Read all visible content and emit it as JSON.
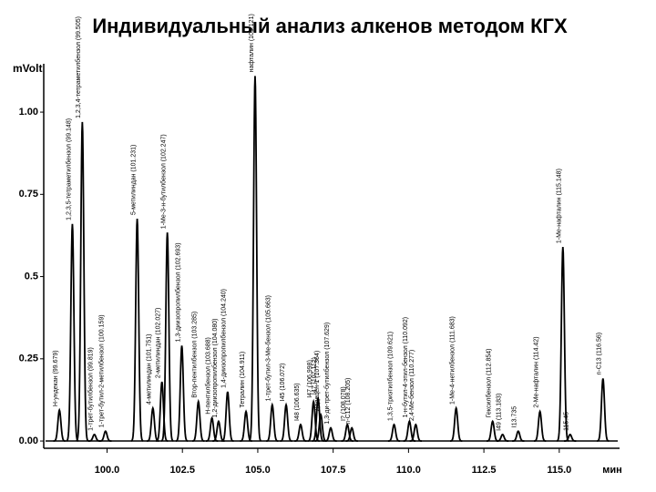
{
  "chart_data": {
    "type": "chromatogram",
    "title": "Индивидуальный анализ алкенов методом КГХ",
    "y_label": "mVolt",
    "x_label": "мин",
    "xlim": [
      97.9,
      117.0
    ],
    "xticks": [
      {
        "value": 100,
        "label": "100.0"
      },
      {
        "value": 102.5,
        "label": "102.5"
      },
      {
        "value": 105,
        "label": "105.0"
      },
      {
        "value": 107.5,
        "label": "107.5"
      },
      {
        "value": 110,
        "label": "110.0"
      },
      {
        "value": 112.5,
        "label": "112.5"
      },
      {
        "value": 115,
        "label": "115.0"
      }
    ],
    "ylim": [
      -0.022,
      1.147
    ],
    "yticks": [
      {
        "value": 0,
        "label": "0.00"
      },
      0.25,
      0.5,
      0.75,
      {
        "value": 1,
        "label": "1.00"
      }
    ],
    "color": "#000000",
    "x": [
      98.42,
      98.85,
      99.18,
      99.58,
      99.95,
      101.0,
      101.52,
      101.82,
      102.0,
      102.48,
      103.03,
      103.48,
      103.7,
      104.0,
      104.61,
      104.91,
      105.48,
      105.94,
      106.42,
      106.85,
      107.0,
      107.09,
      107.42,
      107.97,
      108.12,
      109.52,
      110.03,
      110.24,
      111.58,
      112.79,
      113.12,
      113.64,
      114.36,
      115.12,
      115.36,
      116.45
    ],
    "values": [
      0.094,
      0.66,
      0.97,
      0.02,
      0.03,
      0.676,
      0.1,
      0.18,
      0.634,
      0.29,
      0.12,
      0.07,
      0.06,
      0.15,
      0.09,
      1.11,
      0.11,
      0.11,
      0.05,
      0.12,
      0.13,
      0.08,
      0.04,
      0.05,
      0.04,
      0.05,
      0.06,
      0.05,
      0.1,
      0.06,
      0.02,
      0.03,
      0.09,
      0.59,
      0.02,
      0.19
    ],
    "labels": [
      "Н-ундекан (99.679)",
      "1,2,3,5-тетраметилбензол (99.148)",
      "1,2,3,4-тетраметилбензол (99.505)",
      "1-трет-бутилбензол (99.819)",
      "1-трет-бутил-2-метилбензол (100.159)",
      "5-метилиндан (101.231)",
      "4-метилиндан (101.751)",
      "2-метилиндан (102.027)",
      "1-Ме-3-н-бутилбензол (102.247)",
      "1,3-диизопропилбензол (102.693)",
      "Втор-пентилбензол (103.285)",
      "Н-пентилбензол (103.688)",
      "1,2-диизопропилбензол (104.080)",
      "1,4-диизопропилбензол (104.240)",
      "Тетралин (104.911)",
      "нафталин (105.121)",
      "1-трет-бутил-3-Ме-бензол (105.663)",
      "I45 (106.072)",
      "I48 (106.635)",
      "I47 (106.998)",
      "I47 (107.112)",
      "Додецен-1 (107.364)",
      "1,3-ди-трет-бутилбензол (107.629)",
      "I? (108.078)",
      "n-C12 (108.205)",
      "1,3,5-триэтилбензол (109.621)",
      "1-н-бутил-4-этил-бензол (110.092)",
      "2,4-Ме-бензол (110.277)",
      "1-Ме-4-нетилбензол (111.683)",
      "Гексилбензол (112.854)",
      "I49 (113.183)",
      "I13.735",
      "2-Ме-нафталин (114.42)",
      "1-Ме-нафталин (115.148)",
      "115.45",
      "n-C13 (116.56)"
    ]
  }
}
